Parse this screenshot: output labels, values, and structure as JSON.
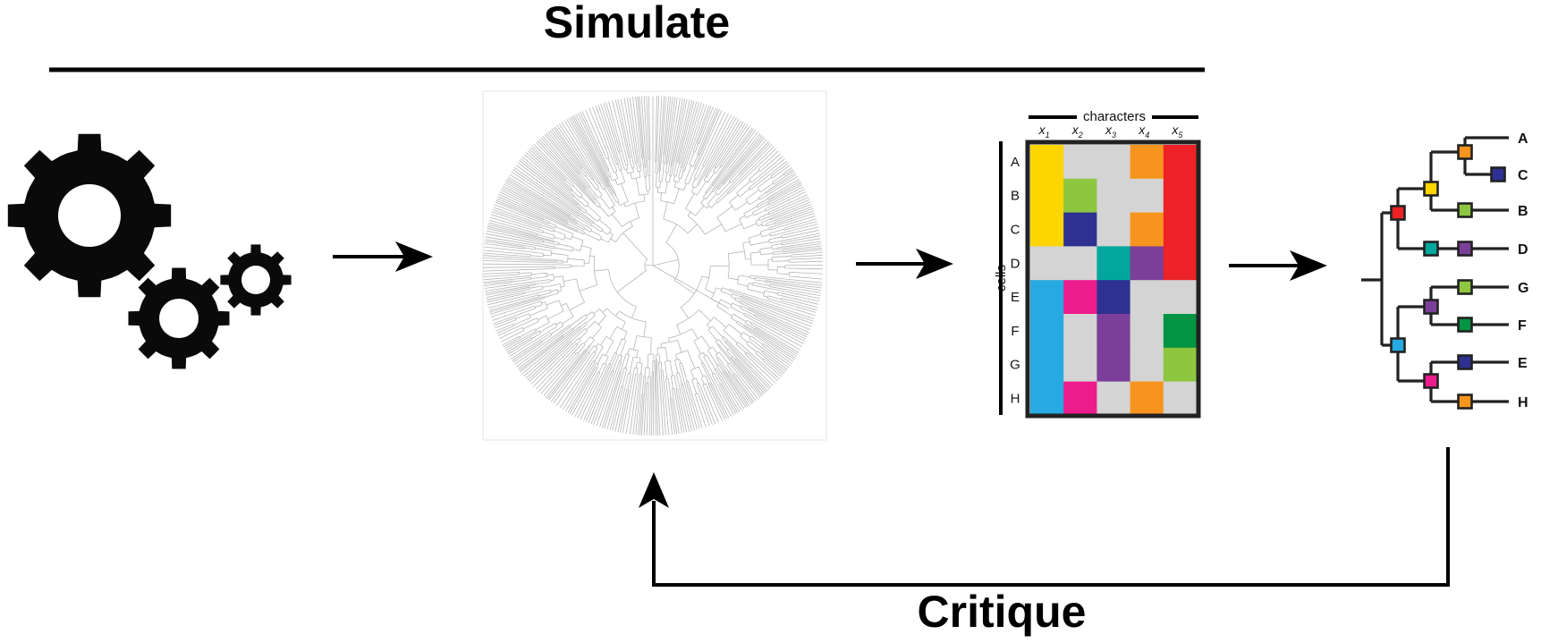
{
  "labels": {
    "simulate": "Simulate",
    "critique": "Critique",
    "characters": "characters",
    "cells": "cells"
  },
  "icons": {
    "gears": "gears-icon",
    "simulated_tree": "circular-lineage-tree"
  },
  "matrix": {
    "columns": [
      "x",
      "x",
      "x",
      "x",
      "x"
    ],
    "column_subscripts": [
      "1",
      "2",
      "3",
      "4",
      "5"
    ],
    "rows": [
      "A",
      "B",
      "C",
      "D",
      "E",
      "F",
      "G",
      "H"
    ],
    "cells": [
      [
        "#FDD500",
        "#D4D4D4",
        "#D4D4D4",
        "#F7941D",
        "#EC2227"
      ],
      [
        "#FDD500",
        "#8DC63F",
        "#D4D4D4",
        "#D4D4D4",
        "#EC2227"
      ],
      [
        "#FDD500",
        "#2E3192",
        "#D4D4D4",
        "#F7941D",
        "#EC2227"
      ],
      [
        "#D4D4D4",
        "#D4D4D4",
        "#00A79D",
        "#7B3F99",
        "#EC2227"
      ],
      [
        "#27AAE1",
        "#EC1C8C",
        "#2E3192",
        "#D4D4D4",
        "#D4D4D4"
      ],
      [
        "#27AAE1",
        "#D4D4D4",
        "#7B3F99",
        "#D4D4D4",
        "#009444"
      ],
      [
        "#27AAE1",
        "#D4D4D4",
        "#7B3F99",
        "#D4D4D4",
        "#8DC63F"
      ],
      [
        "#27AAE1",
        "#EC1C8C",
        "#D4D4D4",
        "#F7941D",
        "#D4D4D4"
      ]
    ]
  },
  "reconstructed_tree": {
    "leaves": [
      "A",
      "C",
      "B",
      "D",
      "G",
      "F",
      "E",
      "H"
    ],
    "node_colors": {
      "node_AC": "#F7941D",
      "leaf_C": "#2E3192",
      "node_ACB": "#FDD500",
      "leaf_B": "#8DC63F",
      "node_top": "#EC2227",
      "leaf_D": "#7B3F99",
      "node_D_branch": "#00A79D",
      "root_lower": "#27AAE1",
      "node_GF": "#7B3F99",
      "leaf_G": "#8DC63F",
      "leaf_F": "#009444",
      "node_EH": "#EC1C8C",
      "leaf_E": "#2E3192",
      "leaf_H": "#F7941D"
    }
  }
}
